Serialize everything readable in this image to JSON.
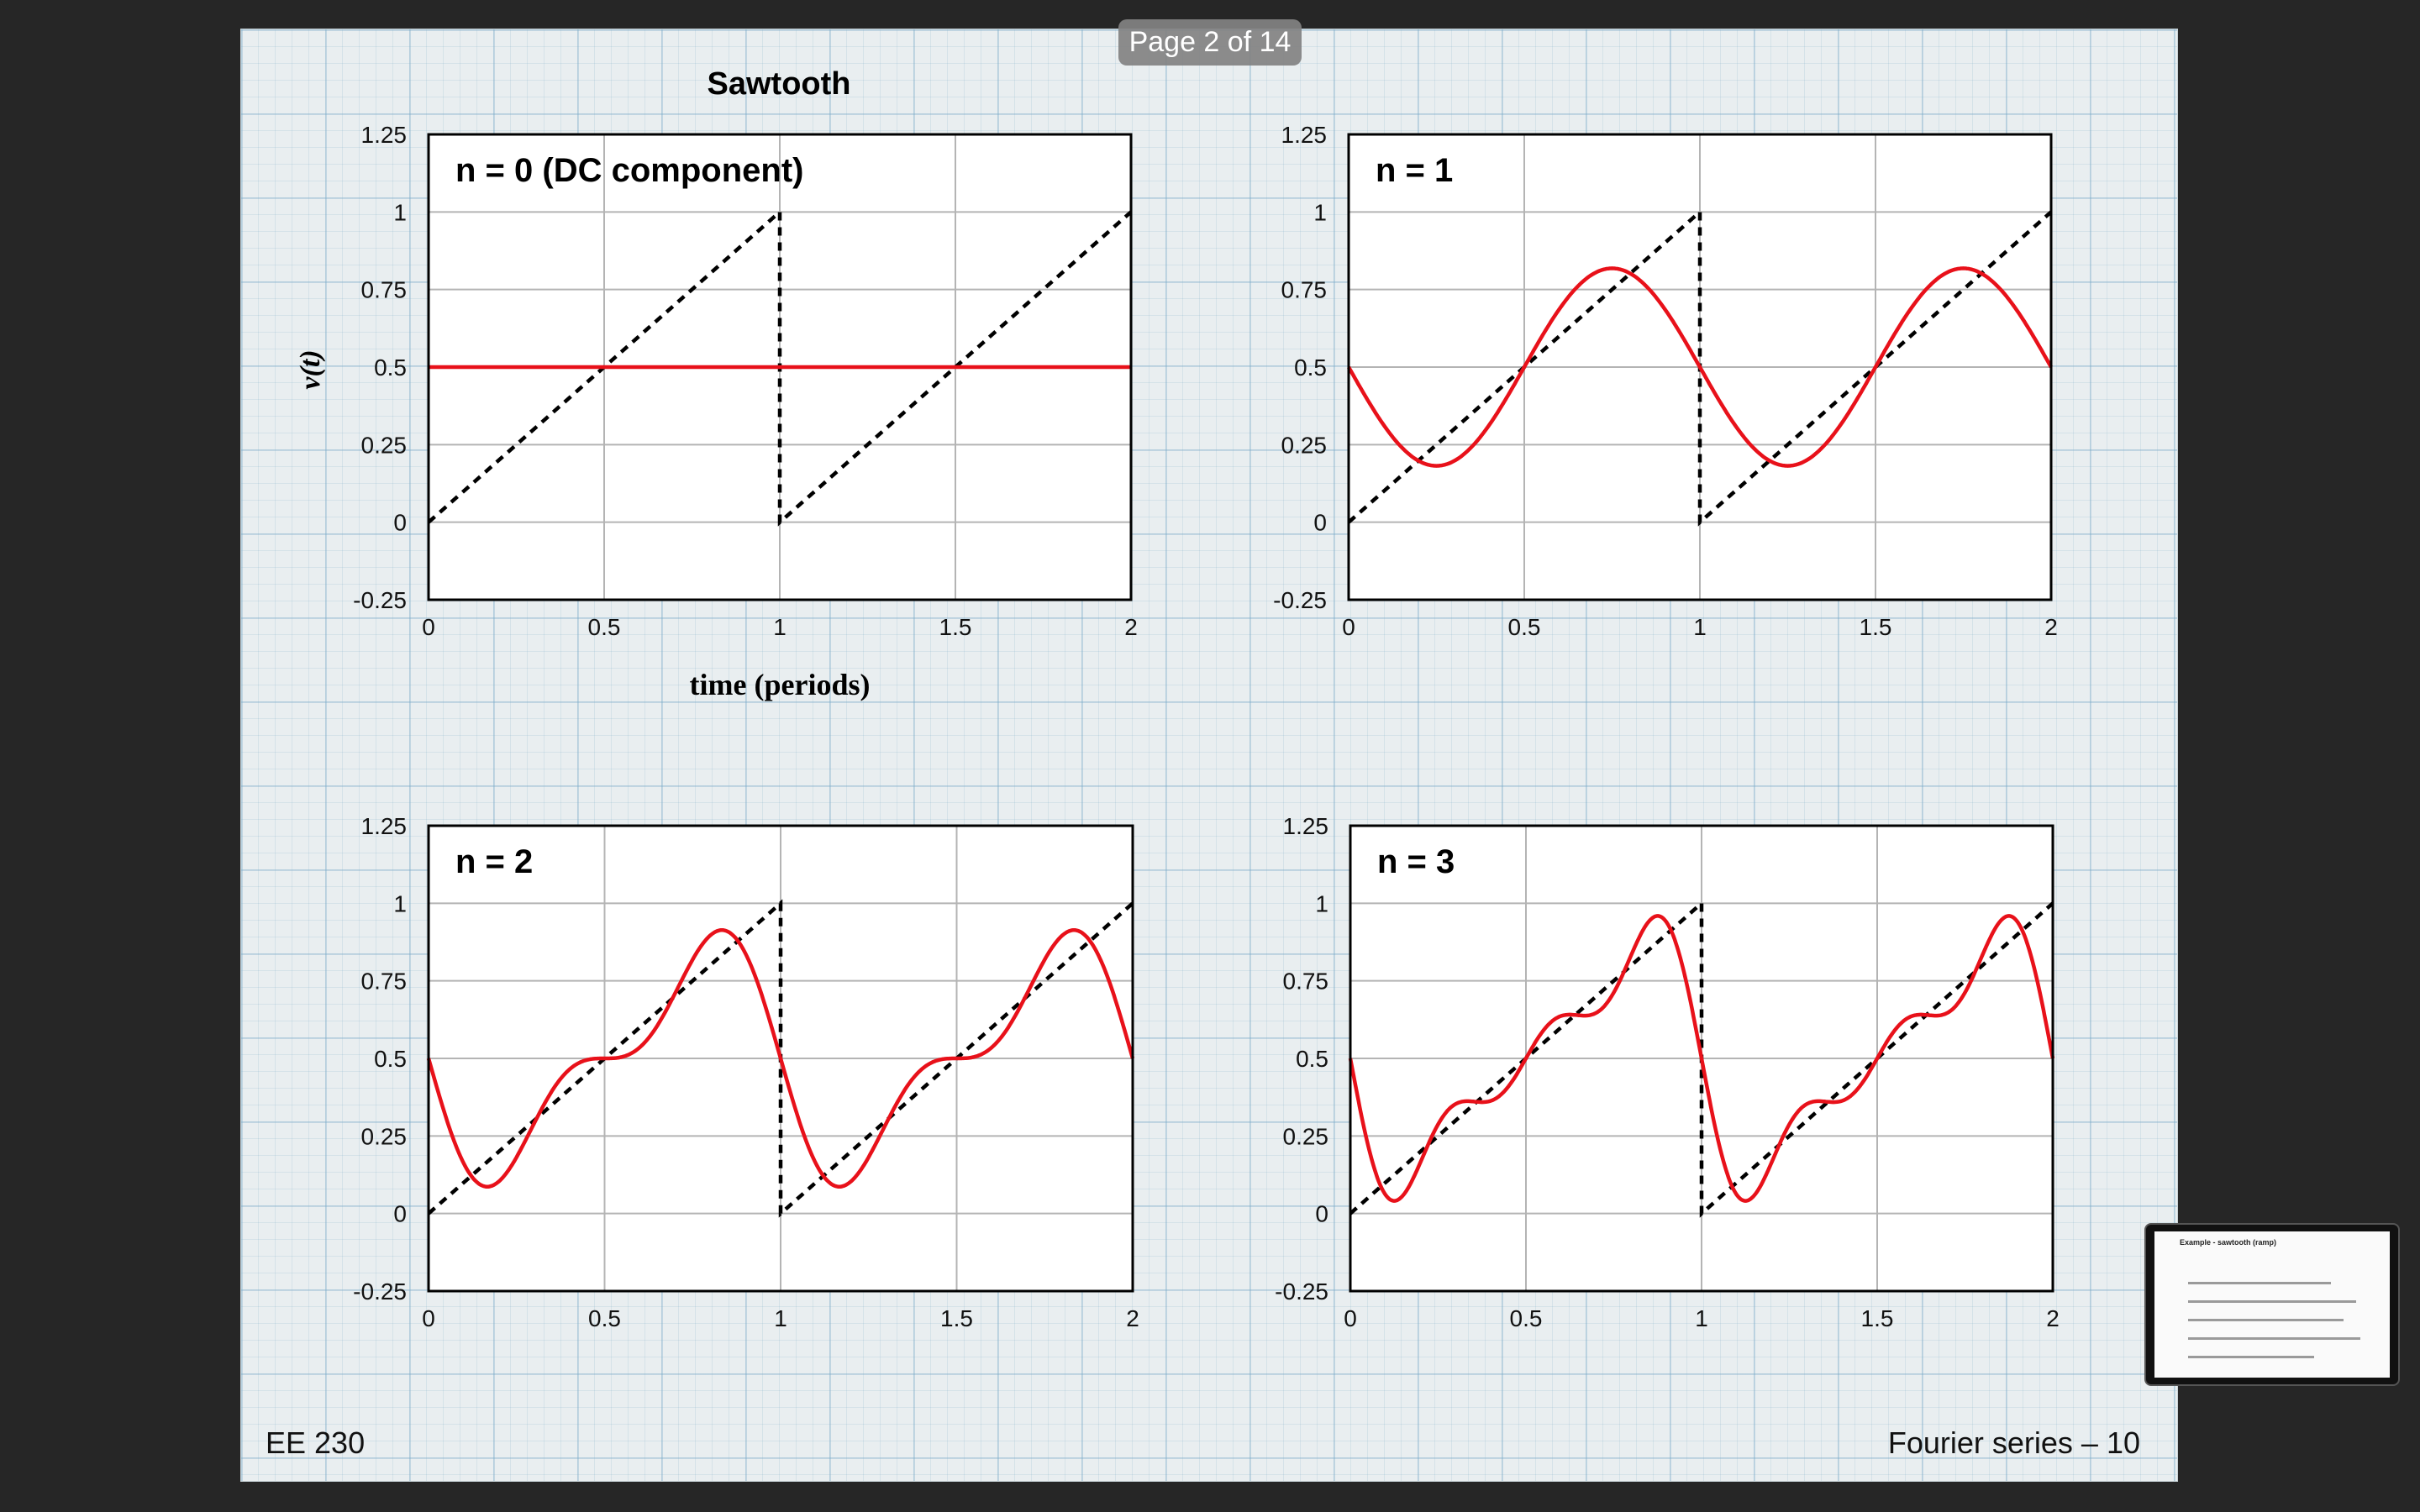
{
  "viewer": {
    "page_indicator": "Page 2 of 14",
    "thumbnail_title": "Example - sawtooth (ramp)"
  },
  "slide": {
    "title": "Sawtooth",
    "footer_left": "EE 230",
    "footer_right": "Fourier series – 10",
    "ylabel": "v(t)",
    "xlabel": "time (periods)"
  },
  "colors": {
    "fourier": "#e8111a",
    "sawtooth": "#000000",
    "grid": "#b4b4b4"
  },
  "chart_data": [
    {
      "type": "line",
      "panel_label": "n = 0 (DC component)",
      "xlim": [
        0,
        2
      ],
      "ylim": [
        -0.25,
        1.25
      ],
      "x_ticks": [
        "0",
        "0.5",
        "1",
        "1.5",
        "2"
      ],
      "y_ticks": [
        "-0.25",
        "0",
        "0.25",
        "0.5",
        "0.75",
        "1",
        "1.25"
      ],
      "harmonics": 0,
      "series": [
        {
          "style": "dashed-black",
          "x": [
            0,
            1,
            1,
            2
          ],
          "y": [
            0,
            1,
            0,
            1
          ]
        },
        {
          "style": "solid-red",
          "x": [
            0,
            2
          ],
          "y": [
            0.5,
            0.5
          ]
        }
      ]
    },
    {
      "type": "line",
      "panel_label": "n = 1",
      "xlim": [
        0,
        2
      ],
      "ylim": [
        -0.25,
        1.25
      ],
      "x_ticks": [
        "0",
        "0.5",
        "1",
        "1.5",
        "2"
      ],
      "y_ticks": [
        "-0.25",
        "0",
        "0.25",
        "0.5",
        "0.75",
        "1",
        "1.25"
      ],
      "harmonics": 1,
      "series": [
        {
          "style": "dashed-black",
          "x": [
            0,
            1,
            1,
            2
          ],
          "y": [
            0,
            1,
            0,
            1
          ]
        },
        {
          "style": "solid-red",
          "x": [
            0,
            0.25,
            0.5,
            0.75,
            1,
            1.25,
            1.5,
            1.75,
            2
          ],
          "y": [
            0.5,
            0.18,
            0.5,
            0.82,
            0.5,
            0.18,
            0.5,
            0.82,
            0.5
          ]
        }
      ]
    },
    {
      "type": "line",
      "panel_label": "n = 2",
      "xlim": [
        0,
        2
      ],
      "ylim": [
        -0.25,
        1.25
      ],
      "x_ticks": [
        "0",
        "0.5",
        "1",
        "1.5",
        "2"
      ],
      "y_ticks": [
        "-0.25",
        "0",
        "0.25",
        "0.5",
        "0.75",
        "1",
        "1.25"
      ],
      "harmonics": 2,
      "series": [
        {
          "style": "dashed-black",
          "x": [
            0,
            1,
            1,
            2
          ],
          "y": [
            0,
            1,
            0,
            1
          ]
        },
        {
          "style": "solid-red",
          "x": [
            0,
            0.17,
            0.5,
            0.83,
            1,
            1.17,
            1.5,
            1.83,
            2
          ],
          "y": [
            0.5,
            0.09,
            0.5,
            0.91,
            0.5,
            0.09,
            0.5,
            0.91,
            0.5
          ]
        }
      ]
    },
    {
      "type": "line",
      "panel_label": "n = 3",
      "xlim": [
        0,
        2
      ],
      "ylim": [
        -0.25,
        1.25
      ],
      "x_ticks": [
        "0",
        "0.5",
        "1",
        "1.5",
        "2"
      ],
      "y_ticks": [
        "-0.25",
        "0",
        "0.25",
        "0.5",
        "0.75",
        "1",
        "1.25"
      ],
      "harmonics": 3,
      "series": [
        {
          "style": "dashed-black",
          "x": [
            0,
            1,
            1,
            2
          ],
          "y": [
            0,
            1,
            0,
            1
          ]
        },
        {
          "style": "solid-red",
          "x": [
            0,
            0.12,
            0.5,
            0.88,
            1,
            1.12,
            1.5,
            1.88,
            2
          ],
          "y": [
            0.5,
            0.04,
            0.5,
            0.96,
            0.5,
            0.04,
            0.5,
            0.96,
            0.5
          ]
        }
      ]
    }
  ]
}
